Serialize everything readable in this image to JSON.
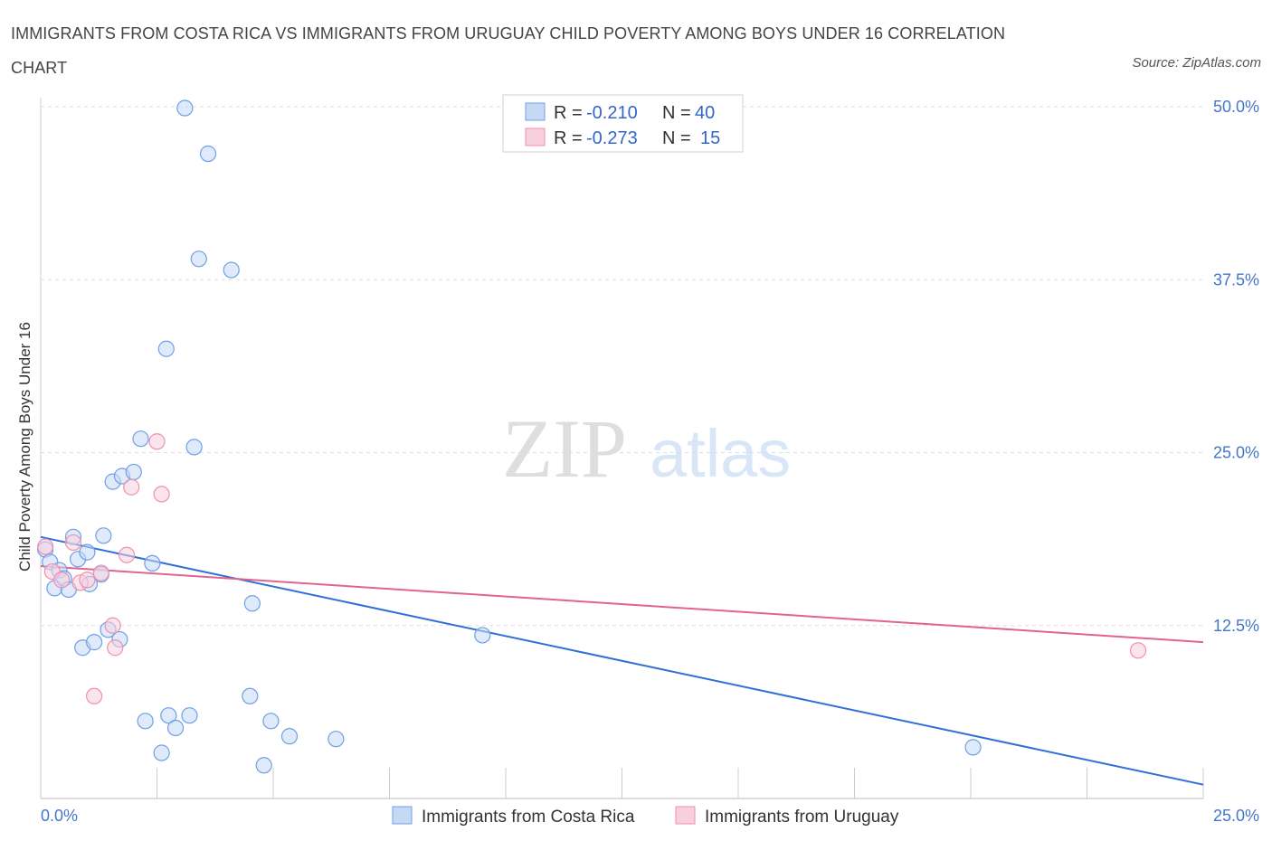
{
  "title": "IMMIGRANTS FROM COSTA RICA VS IMMIGRANTS FROM URUGUAY CHILD POVERTY AMONG BOYS UNDER 16 CORRELATION CHART",
  "source": "Source: ZipAtlas.com",
  "watermark": {
    "zip": "ZIP",
    "atlas": "atlas"
  },
  "legend_top": [
    {
      "r_label": "R =",
      "r_value": "-0.210",
      "n_label": "N =",
      "n_value": "40",
      "color": "#6f9fe6"
    },
    {
      "r_label": "R =",
      "r_value": "-0.273",
      "n_label": "N =",
      "n_value": "15",
      "color": "#ef8fb0"
    }
  ],
  "chart_data": {
    "type": "scatter",
    "title": "IMMIGRANTS FROM COSTA RICA VS IMMIGRANTS FROM URUGUAY CHILD POVERTY AMONG BOYS UNDER 16 CORRELATION CHART",
    "xlabel": "",
    "ylabel": "Child Poverty Among Boys Under 16",
    "xlim": [
      0,
      25
    ],
    "ylim": [
      0,
      50
    ],
    "x_tick_labels": [
      "0.0%",
      "25.0%"
    ],
    "y_ticks": [
      12.5,
      25.0,
      37.5,
      50.0
    ],
    "y_tick_labels": [
      "12.5%",
      "25.0%",
      "37.5%",
      "50.0%"
    ],
    "grid": true,
    "series": [
      {
        "name": "Immigrants from Costa Rica",
        "color": "#6f9fe6",
        "fill": "#c5d9f5",
        "points": [
          [
            0.1,
            18.0
          ],
          [
            0.2,
            17.1
          ],
          [
            0.3,
            15.2
          ],
          [
            0.4,
            16.5
          ],
          [
            0.5,
            15.9
          ],
          [
            0.6,
            15.1
          ],
          [
            0.7,
            18.9
          ],
          [
            0.8,
            17.3
          ],
          [
            0.9,
            10.9
          ],
          [
            1.0,
            17.8
          ],
          [
            1.05,
            15.5
          ],
          [
            1.15,
            11.3
          ],
          [
            1.3,
            16.2
          ],
          [
            1.35,
            19.0
          ],
          [
            1.45,
            12.2
          ],
          [
            1.55,
            22.9
          ],
          [
            1.7,
            11.5
          ],
          [
            1.75,
            23.3
          ],
          [
            2.0,
            23.6
          ],
          [
            2.15,
            26.0
          ],
          [
            2.25,
            5.6
          ],
          [
            2.4,
            17.0
          ],
          [
            2.6,
            3.3
          ],
          [
            2.7,
            32.5
          ],
          [
            2.75,
            6.0
          ],
          [
            2.9,
            5.1
          ],
          [
            3.1,
            49.9
          ],
          [
            3.2,
            6.0
          ],
          [
            3.3,
            25.4
          ],
          [
            3.4,
            39.0
          ],
          [
            3.6,
            46.6
          ],
          [
            4.1,
            38.2
          ],
          [
            4.5,
            7.4
          ],
          [
            4.55,
            14.1
          ],
          [
            4.8,
            2.4
          ],
          [
            4.95,
            5.6
          ],
          [
            5.35,
            4.5
          ],
          [
            6.35,
            4.3
          ],
          [
            9.5,
            11.8
          ],
          [
            20.05,
            3.7
          ]
        ]
      },
      {
        "name": "Immigrants from Uruguay",
        "color": "#ef8fb0",
        "fill": "#f8cfdd",
        "points": [
          [
            0.1,
            18.2
          ],
          [
            0.25,
            16.4
          ],
          [
            0.45,
            15.8
          ],
          [
            0.7,
            18.5
          ],
          [
            0.85,
            15.6
          ],
          [
            1.0,
            15.8
          ],
          [
            1.15,
            7.4
          ],
          [
            1.3,
            16.3
          ],
          [
            1.55,
            12.5
          ],
          [
            1.6,
            10.9
          ],
          [
            1.85,
            17.6
          ],
          [
            1.95,
            22.5
          ],
          [
            2.5,
            25.8
          ],
          [
            2.6,
            22.0
          ],
          [
            23.6,
            10.7
          ]
        ]
      }
    ],
    "trendlines": [
      {
        "series": "Immigrants from Costa Rica",
        "x": [
          0,
          25
        ],
        "y": [
          18.9,
          1.0
        ],
        "color": "#2f6fd6"
      },
      {
        "series": "Immigrants from Uruguay",
        "x": [
          0,
          25
        ],
        "y": [
          16.8,
          11.3
        ],
        "color": "#e0648e"
      }
    ]
  }
}
